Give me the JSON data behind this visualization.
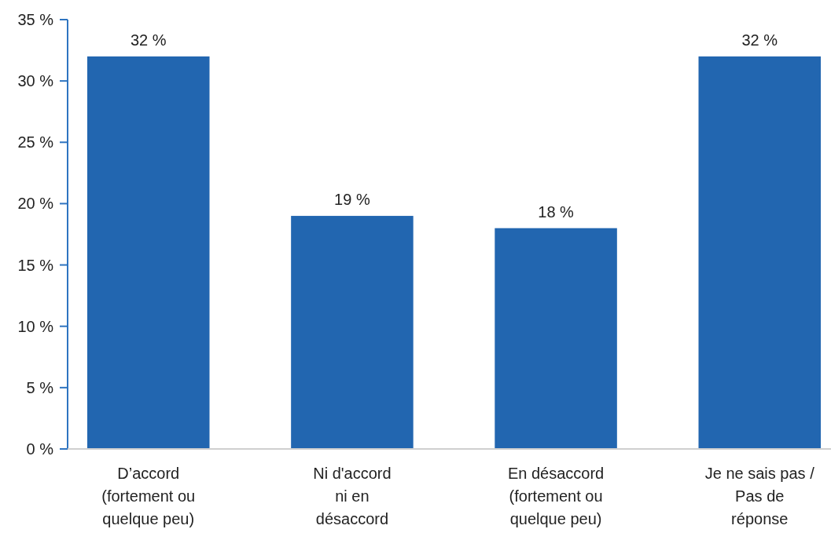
{
  "chart_data": {
    "type": "bar",
    "categories": [
      "D’accord\n(fortement ou\nquelque peu)",
      "Ni d'accord\nni en\ndésaccord",
      "En désaccord\n(fortement ou\nquelque peu)",
      "Je ne sais pas /\nPas de\nréponse"
    ],
    "values": [
      32,
      19,
      18,
      32
    ],
    "value_labels": [
      "32 %",
      "19 %",
      "18 %",
      "32 %"
    ],
    "color": "#2266b0",
    "ylim": [
      0,
      35
    ],
    "yticks": [
      {
        "value": 0,
        "label": "0 %"
      },
      {
        "value": 5,
        "label": "5 %"
      },
      {
        "value": 10,
        "label": "10 %"
      },
      {
        "value": 15,
        "label": "15 %"
      },
      {
        "value": 20,
        "label": "20 %"
      },
      {
        "value": 25,
        "label": "25 %"
      },
      {
        "value": 30,
        "label": "30 %"
      },
      {
        "value": 35,
        "label": "35 %"
      }
    ],
    "grid": false
  }
}
